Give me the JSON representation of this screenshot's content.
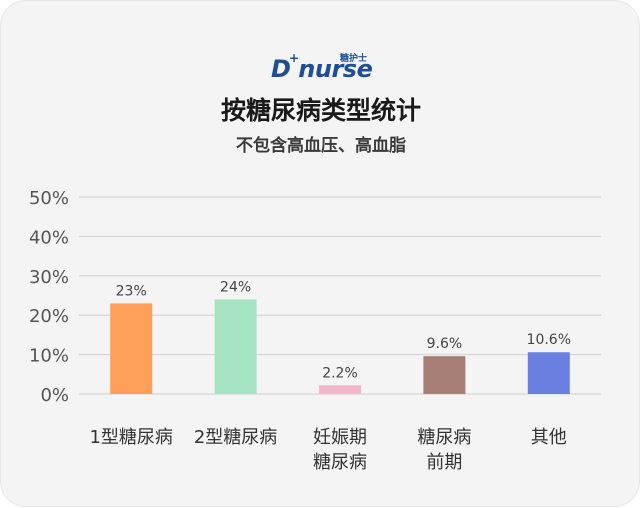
{
  "logo": {
    "wordmark": "D nurse",
    "tag": "糖护士",
    "plus": "+"
  },
  "title": "按糖尿病类型统计",
  "subtitle": "不包含高血压、高血脂",
  "colors": {
    "background": "#f4f4f4",
    "grid": "#cfcfcf",
    "axis_text": "#555555",
    "label_text": "#444444",
    "brand": "#1f4e97"
  },
  "chart_data": {
    "type": "bar",
    "title": "按糖尿病类型统计",
    "subtitle": "不包含高血压、高血脂",
    "categories": [
      [
        "1型糖尿病"
      ],
      [
        "2型糖尿病"
      ],
      [
        "妊娠期",
        "糖尿病"
      ],
      [
        "糖尿病",
        "前期"
      ],
      [
        "其他"
      ]
    ],
    "values": [
      23,
      24,
      2.2,
      9.6,
      10.6
    ],
    "value_labels": [
      "23%",
      "24%",
      "2.2%",
      "9.6%",
      "10.6%"
    ],
    "bar_colors": [
      "#ff9f5a",
      "#a6e3c3",
      "#f3b7cb",
      "#a77f76",
      "#6a7fe0"
    ],
    "y_ticks": [
      "0%",
      "10%",
      "20%",
      "30%",
      "40%",
      "50%"
    ],
    "ylim": [
      0,
      50
    ],
    "grid": true,
    "xlabel": "",
    "ylabel": ""
  }
}
